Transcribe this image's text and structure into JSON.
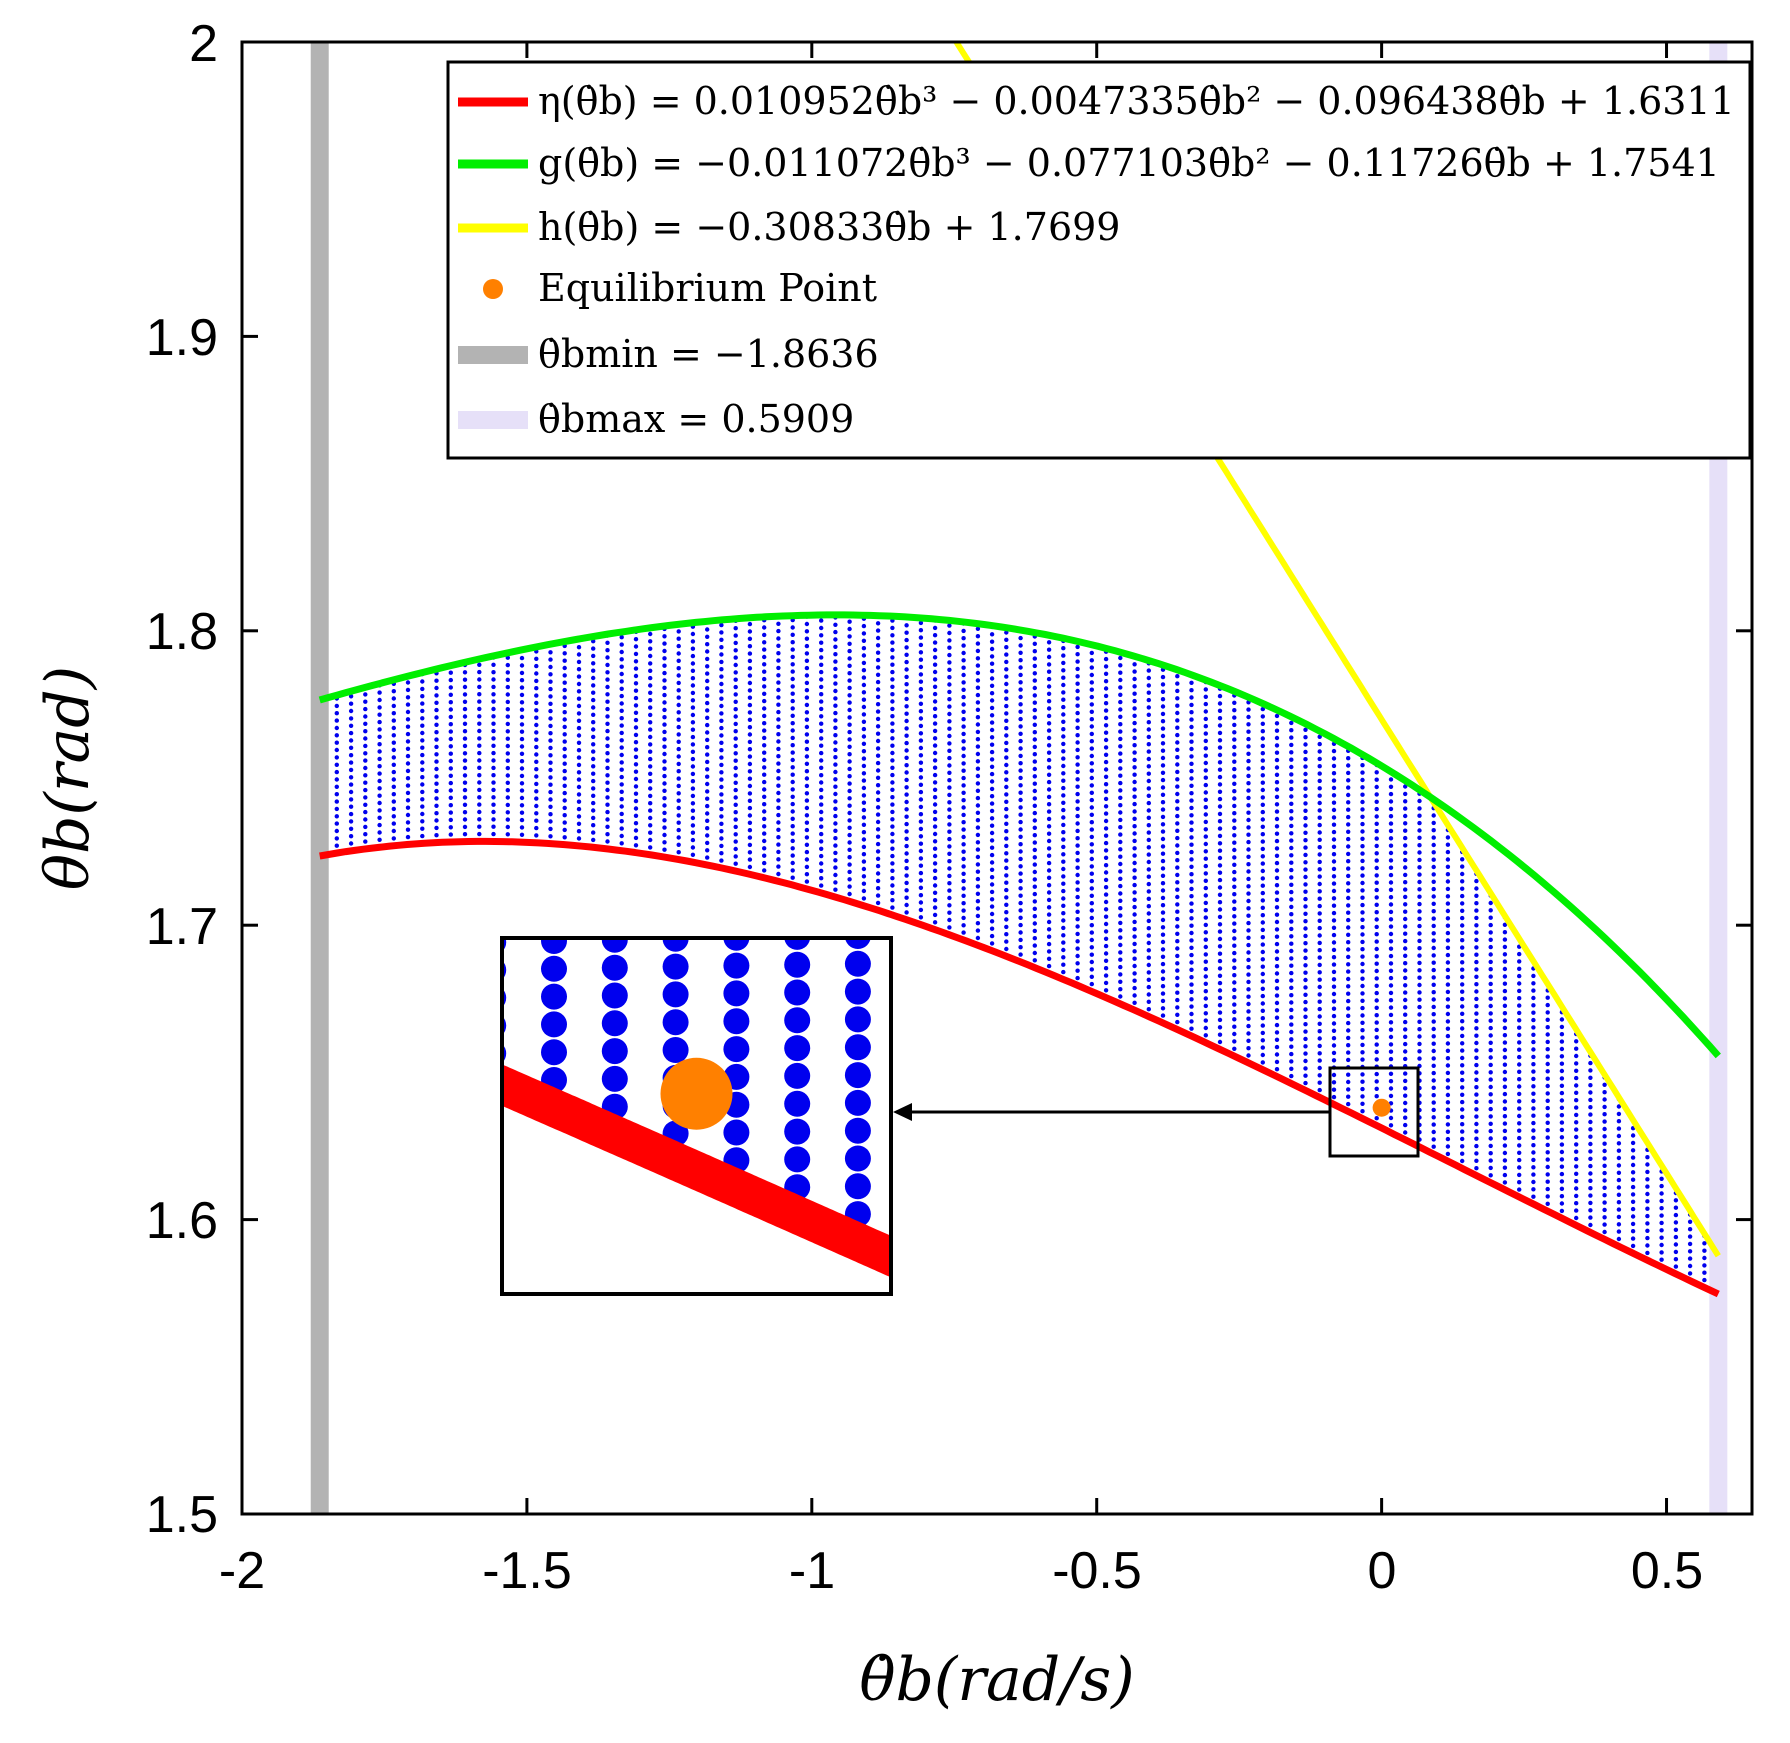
{
  "chart_data": {
    "type": "line",
    "title": "",
    "xlabel": "θ̇b(rad/s)",
    "ylabel": "θb(rad)",
    "xlim": [
      -2,
      0.65
    ],
    "ylim": [
      1.5,
      2.0
    ],
    "x_ticks": [
      -2,
      -1.5,
      -1,
      -0.5,
      0,
      0.5
    ],
    "x_tick_labels": [
      "-2",
      "-1.5",
      "-1",
      "-0.5",
      "0",
      "0.5"
    ],
    "y_ticks": [
      1.5,
      1.6,
      1.7,
      1.8,
      1.9,
      2.0
    ],
    "y_tick_labels": [
      "1.5",
      "1.6",
      "1.7",
      "1.8",
      "1.9",
      "2"
    ],
    "legend_position": "top-right",
    "series": [
      {
        "name": "eta",
        "kind": "cubic",
        "coefficients": [
          0.010952,
          -0.0047335,
          -0.096438,
          1.6311
        ],
        "domain": [
          -1.8636,
          0.5909
        ],
        "color": "#ff0000",
        "label": "η(θ̇b) = 0.010952θ̇b³ − 0.0047335θ̇b² − 0.096438θ̇b + 1.6311"
      },
      {
        "name": "g",
        "kind": "cubic",
        "coefficients": [
          -0.011072,
          -0.077103,
          -0.11726,
          1.7541
        ],
        "domain": [
          -1.8636,
          0.5909
        ],
        "color": "#00ee00",
        "label": "g(θ̇b) = −0.011072θ̇b³ − 0.077103θ̇b² − 0.11726θ̇b + 1.7541"
      },
      {
        "name": "h",
        "kind": "linear",
        "coefficients": [
          -0.30833,
          1.7699
        ],
        "domain": [
          -0.75,
          0.5909
        ],
        "color": "#ffff00",
        "label": "h(θ̇b) = −0.30833θ̇b + 1.7699"
      },
      {
        "name": "equilibrium",
        "kind": "point",
        "x": 0,
        "y": 1.638,
        "color": "#ff8000",
        "label": "Equilibrium Point"
      },
      {
        "name": "bmin",
        "kind": "vertical",
        "x": -1.8636,
        "color": "#b3b3b3",
        "label": "θ̇bmin = −1.8636"
      },
      {
        "name": "bmax",
        "kind": "vertical",
        "x": 0.5909,
        "color": "#e6e0f8",
        "label": "θ̇bmax = 0.5909"
      }
    ],
    "feasible_region": {
      "color": "#0000ee",
      "x_step": 0.025,
      "y_step": 0.0025,
      "description": "grid of points between η and min(g, h)"
    },
    "inset": {
      "x_range": [
        -0.08,
        0.08
      ],
      "y_range": [
        1.62,
        1.652
      ]
    }
  }
}
